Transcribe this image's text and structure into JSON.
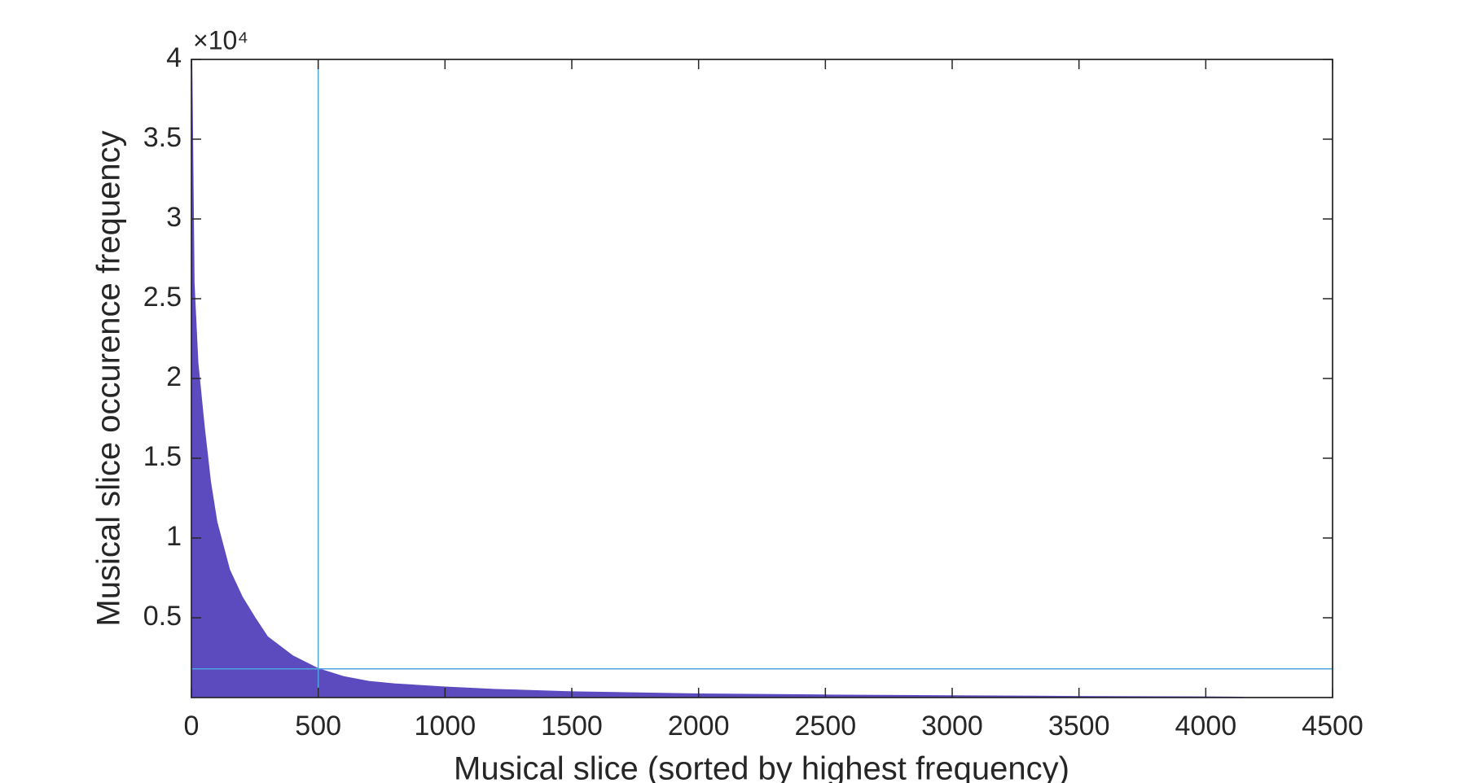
{
  "chart_data": {
    "type": "area",
    "xlabel": "Musical slice (sorted by highest frequency)",
    "ylabel": "Musical slice occurence frequency",
    "y_exponent_label": "×10⁴",
    "x": [
      1,
      10,
      25,
      50,
      75,
      100,
      150,
      200,
      250,
      300,
      400,
      500,
      600,
      700,
      800,
      1000,
      1200,
      1500,
      2000,
      2500,
      3000,
      3500,
      4000,
      4150
    ],
    "series": [
      {
        "color": "#5b4bbf",
        "values": [
          40000,
          26000,
          21000,
          17000,
          13500,
          11000,
          8000,
          6300,
          5000,
          3800,
          2600,
          1800,
          1300,
          1000,
          850,
          650,
          500,
          350,
          220,
          150,
          100,
          60,
          30,
          10
        ]
      }
    ],
    "reference_lines": {
      "color": "#4fa3e0",
      "x": 500,
      "y": 1800
    },
    "xlim": [
      0,
      4500
    ],
    "xticks": [
      0,
      500,
      1000,
      1500,
      2000,
      2500,
      3000,
      3500,
      4000,
      4500
    ],
    "ylim": [
      0,
      40000
    ],
    "yticks": [
      {
        "value": 5000,
        "label": "0.5"
      },
      {
        "value": 10000,
        "label": "1"
      },
      {
        "value": 15000,
        "label": "1.5"
      },
      {
        "value": 20000,
        "label": "2"
      },
      {
        "value": 25000,
        "label": "2.5"
      },
      {
        "value": 30000,
        "label": "3"
      },
      {
        "value": 35000,
        "label": "3.5"
      },
      {
        "value": 40000,
        "label": "4"
      }
    ],
    "grid": false
  }
}
